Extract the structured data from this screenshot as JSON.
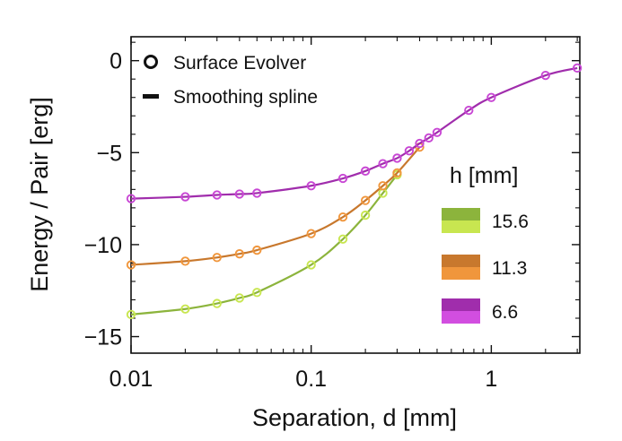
{
  "chart_data": {
    "type": "scatter",
    "xscale": "log",
    "xlabel": "Separation, d [mm]",
    "ylabel": "Energy / Pair [erg]",
    "xlim": [
      0.01,
      3.1
    ],
    "ylim": [
      -15.9,
      1.3
    ],
    "xticks": [
      {
        "value": 0.01,
        "label": "0.01"
      },
      {
        "value": 0.1,
        "label": "0.1"
      },
      {
        "value": 1,
        "label": "1"
      }
    ],
    "yticks": [
      {
        "value": 0,
        "label": "0"
      },
      {
        "value": -5,
        "label": "−5"
      },
      {
        "value": -10,
        "label": "−10"
      },
      {
        "value": -15,
        "label": "−15"
      }
    ],
    "legend_markers": {
      "points_label": "Surface Evolver",
      "line_label": "Smoothing spline"
    },
    "legend_title": "h [mm]",
    "series": [
      {
        "name": "15.6",
        "line_color": "#8cb43c",
        "marker_color": "#c8e650",
        "swatch_colors": [
          "#8cb43c",
          "#c8e650"
        ],
        "x": [
          0.01,
          0.02,
          0.03,
          0.04,
          0.05,
          0.1,
          0.15,
          0.2,
          0.25,
          0.3
        ],
        "y": [
          -13.8,
          -13.5,
          -13.2,
          -12.9,
          -12.6,
          -11.1,
          -9.7,
          -8.4,
          -7.2,
          -6.2
        ]
      },
      {
        "name": "11.3",
        "line_color": "#c8782d",
        "marker_color": "#f0963c",
        "swatch_colors": [
          "#c8782d",
          "#f0963c"
        ],
        "x": [
          0.01,
          0.02,
          0.03,
          0.04,
          0.05,
          0.1,
          0.15,
          0.2,
          0.25,
          0.3,
          0.4
        ],
        "y": [
          -11.1,
          -10.9,
          -10.7,
          -10.5,
          -10.3,
          -9.4,
          -8.5,
          -7.6,
          -6.8,
          -6.1,
          -4.7
        ]
      },
      {
        "name": "6.6",
        "line_color": "#a02dac",
        "marker_color": "#c846d4",
        "swatch_colors": [
          "#a02dac",
          "#d24ee0"
        ],
        "x": [
          0.01,
          0.02,
          0.03,
          0.04,
          0.05,
          0.1,
          0.15,
          0.2,
          0.25,
          0.3,
          0.35,
          0.4,
          0.45,
          0.5,
          0.75,
          1.0,
          2.0,
          3.0
        ],
        "y": [
          -7.5,
          -7.4,
          -7.3,
          -7.25,
          -7.2,
          -6.8,
          -6.4,
          -6.0,
          -5.6,
          -5.3,
          -4.9,
          -4.5,
          -4.2,
          -3.9,
          -2.7,
          -2.0,
          -0.8,
          -0.4
        ]
      }
    ]
  }
}
